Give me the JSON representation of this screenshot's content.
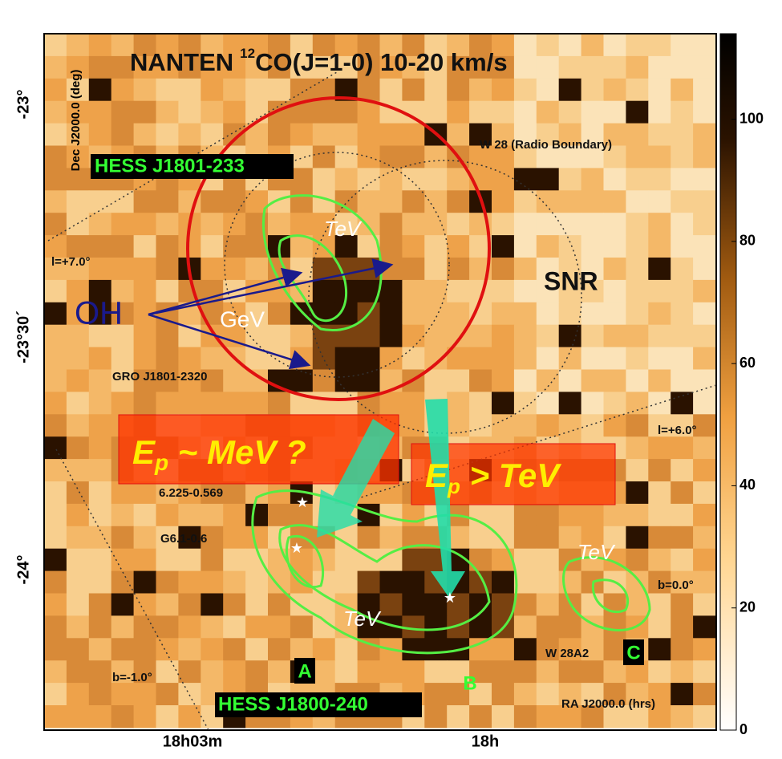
{
  "chart_data": {
    "type": "skymap",
    "title": {
      "prefix": "NANTEN",
      "superscript": "12",
      "suffix": "CO(J=1-0)  10-20 km/s"
    },
    "y_axis_label": "Dec J2000.0 (deg)",
    "x_axis_label": "RA J2000.0 (hrs)",
    "yticks": [
      "-23°",
      "-23°30´",
      "-24°"
    ],
    "xticks": [
      "18h03m",
      "18h"
    ],
    "colorbar": {
      "lim": [
        0,
        114
      ],
      "ticks": [
        0,
        20,
        40,
        60,
        80,
        100
      ]
    },
    "annotations": {
      "hess_north": "HESS J1801-233",
      "hess_south": "HESS J1800-240",
      "w28": "W 28 (Radio Boundary)",
      "l7": "l=+7.0°",
      "l6": "l=+6.0°",
      "snr": "SNR",
      "oh": "OH",
      "gev": "GeV",
      "tev1": "TeV",
      "tev2": "TeV",
      "tev3": "TeV",
      "gro": "GRO J1801-2320",
      "src1": "6.225-0.569",
      "src2": "G6.1-0.6",
      "b0": "b=0.0°",
      "bm1": "b=-1.0°",
      "w28a2": "W 28A2",
      "a": "A",
      "b": "B",
      "c": "C"
    },
    "boxes": {
      "mev": {
        "base": "E",
        "sub": "p",
        "rest": " ~ MeV ?"
      },
      "tev": {
        "base": "E",
        "sub": "p",
        "rest": " > TeV"
      }
    }
  }
}
